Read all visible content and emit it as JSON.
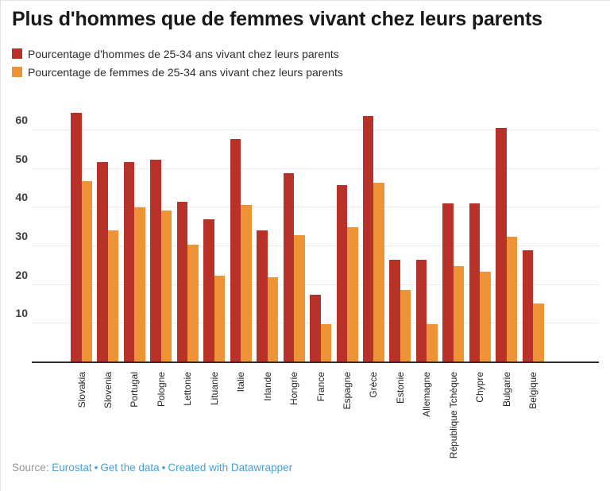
{
  "header": {
    "title": "Plus d'hommes que de femmes vivant chez leurs parents"
  },
  "chart_data": {
    "type": "bar",
    "title": "Plus d'hommes que de femmes vivant chez leurs parents",
    "categories": [
      "Slovakia",
      "Slovenia",
      "Portugal",
      "Pologne",
      "Lettonie",
      "Lituanie",
      "Italie",
      "Irlande",
      "Hongrie",
      "France",
      "Espagne",
      "Grèce",
      "Estonie",
      "Allemagne",
      "République Tchèque",
      "Chypre",
      "Bulgarie",
      "Belgique"
    ],
    "series": [
      {
        "key": "hommes",
        "name": "Pourcentage d'hommes de 25-34 ans vivant chez leurs parents",
        "color": "#b8322a",
        "values": [
          64.2,
          51.5,
          51.5,
          52.1,
          41.3,
          36.7,
          57.4,
          33.9,
          48.7,
          17.3,
          45.6,
          63.5,
          26.2,
          26.2,
          40.8,
          40.8,
          60.4,
          28.7
        ]
      },
      {
        "key": "femmes",
        "name": "Pourcentage de femmes de 25-34 ans vivant chez leurs parents",
        "color": "#ee9336",
        "values": [
          46.6,
          33.9,
          39.9,
          39.0,
          30.2,
          22.2,
          40.5,
          21.8,
          32.7,
          9.7,
          34.6,
          46.1,
          18.5,
          9.7,
          24.6,
          23.3,
          32.2,
          14.9
        ]
      }
    ],
    "xlabel": "",
    "ylabel": "",
    "ylim": [
      0,
      66
    ],
    "yticks": [
      10,
      20,
      30,
      40,
      50,
      60
    ],
    "grid": true,
    "legend_position": "top-left"
  },
  "footer": {
    "source_label": "Source:",
    "links": [
      "Eurostat",
      "Get the data",
      "Created with Datawrapper"
    ],
    "separator": "•"
  },
  "colors": {
    "men": "#b8322a",
    "women": "#ee9336",
    "grid": "#e9e9e9",
    "axis": "#2b2b2b",
    "link": "#45a1d8"
  }
}
